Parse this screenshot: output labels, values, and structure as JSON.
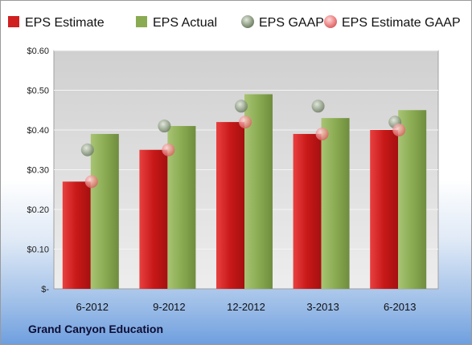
{
  "chart_data": {
    "type": "bar",
    "title": "",
    "xlabel": "",
    "ylabel": "",
    "categories": [
      "6-2012",
      "9-2012",
      "12-2012",
      "3-2013",
      "6-2013"
    ],
    "ylim": [
      0,
      0.6
    ],
    "yticks": [
      0,
      0.1,
      0.2,
      0.3,
      0.4,
      0.5,
      0.6
    ],
    "ytick_labels": [
      "$-",
      "$0.10",
      "$0.20",
      "$0.30",
      "$0.40",
      "$0.50",
      "$0.60"
    ],
    "grid": true,
    "legend_position": "top",
    "series": [
      {
        "name": "EPS Estimate",
        "kind": "bar",
        "color": "#d02020",
        "values": [
          0.27,
          0.35,
          0.42,
          0.39,
          0.4
        ]
      },
      {
        "name": "EPS Actual",
        "kind": "bar",
        "color": "#8aab52",
        "values": [
          0.39,
          0.41,
          0.49,
          0.43,
          0.45
        ]
      },
      {
        "name": "EPS GAAP",
        "kind": "scatter",
        "color": "#9aa890",
        "values": [
          0.35,
          0.41,
          0.46,
          0.46,
          0.42
        ]
      },
      {
        "name": "EPS Estimate GAAP",
        "kind": "scatter",
        "color": "#ef8f8f",
        "values": [
          0.27,
          0.35,
          0.42,
          0.39,
          0.4
        ]
      }
    ]
  },
  "footer": {
    "company": "Grand Canyon Education"
  }
}
